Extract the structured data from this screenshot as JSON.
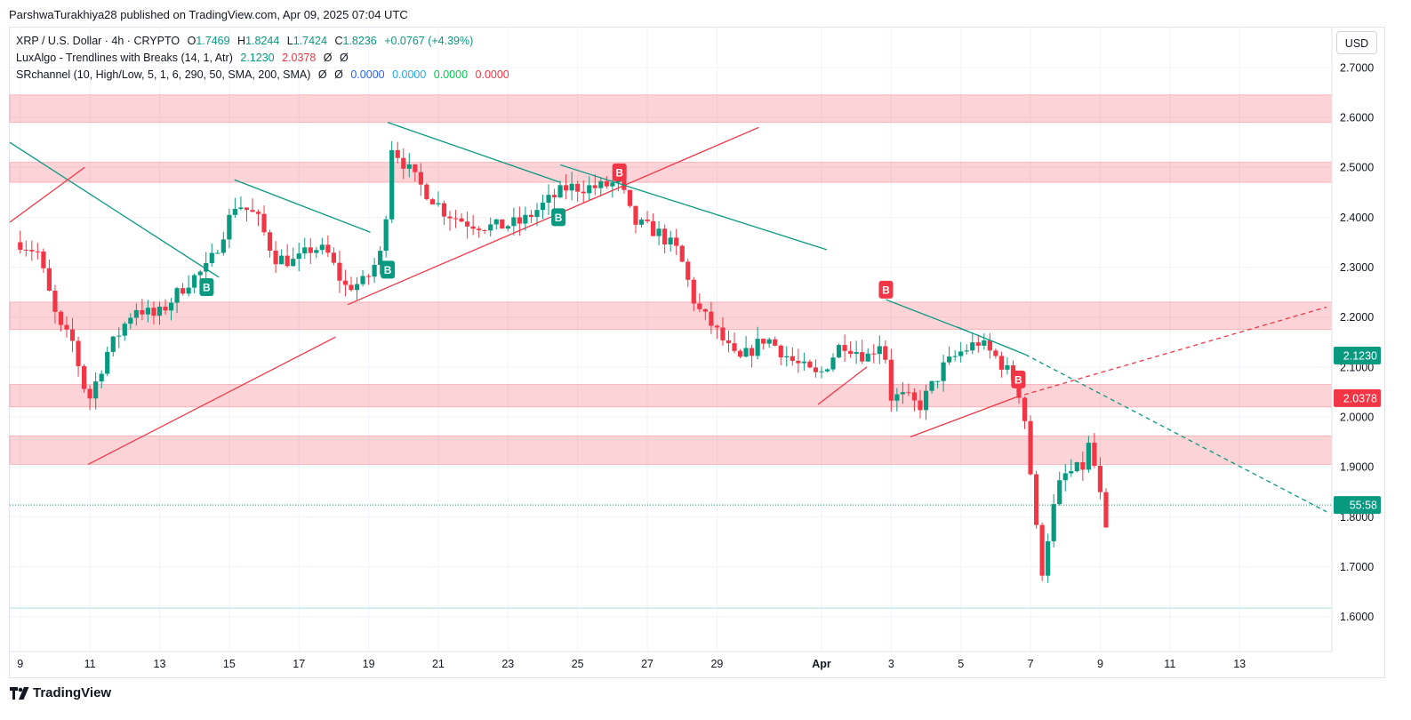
{
  "publisher": "ParshwaTurakhiya28 published on TradingView.com, Apr 09, 2025 07:04 UTC",
  "legend": {
    "symbol": "XRP / U.S. Dollar · 4h · CRYPTO",
    "open_label": "O",
    "open": "1.7469",
    "high_label": "H",
    "high": "1.8244",
    "low_label": "L",
    "low": "1.7424",
    "close_label": "C",
    "close": "1.8236",
    "change": "+0.0767 (+4.39%)",
    "ind1_name": "LuxAlgo - Trendlines with Breaks (14, 1, Atr)",
    "ind1_v1": "2.1230",
    "ind1_v2": "2.0378",
    "ind1_na1": "Ø",
    "ind1_na2": "Ø",
    "ind2_name": "SRchannel (10, High/Low, 5, 1, 6, 290, 50, SMA, 200, SMA)",
    "ind2_na1": "Ø",
    "ind2_na2": "Ø",
    "ind2_v1": "0.0000",
    "ind2_v2": "0.0000",
    "ind2_v3": "0.0000",
    "ind2_v4": "0.0000"
  },
  "currency_button": "USD",
  "branding": "TradingView",
  "colors": {
    "up": "#089981",
    "down": "#f23645",
    "zone": "#f23645",
    "support_trend": "#f23645",
    "resistance_trend": "#089981",
    "grid": "#f0f3fa"
  },
  "chart_data": {
    "type": "candlestick",
    "title": "XRP / U.S. Dollar · 4h · CRYPTO",
    "x_axis": "date",
    "y_axis": "price (USD)",
    "ylim": [
      1.53,
      2.78
    ],
    "y_ticks": [
      "2.7000",
      "2.6000",
      "2.5000",
      "2.4000",
      "2.3000",
      "2.2000",
      "2.1000",
      "2.0000",
      "1.9000",
      "1.8000",
      "1.7000",
      "1.6000"
    ],
    "x_ticks": [
      {
        "label": "9",
        "day": 9
      },
      {
        "label": "11",
        "day": 11
      },
      {
        "label": "13",
        "day": 13
      },
      {
        "label": "15",
        "day": 15
      },
      {
        "label": "17",
        "day": 17
      },
      {
        "label": "19",
        "day": 19
      },
      {
        "label": "21",
        "day": 21
      },
      {
        "label": "23",
        "day": 23
      },
      {
        "label": "25",
        "day": 25
      },
      {
        "label": "27",
        "day": 27
      },
      {
        "label": "29",
        "day": 29
      },
      {
        "label": "Apr",
        "day": 32
      },
      {
        "label": "3",
        "day": 34
      },
      {
        "label": "5",
        "day": 36
      },
      {
        "label": "7",
        "day": 38
      },
      {
        "label": "9",
        "day": 40
      },
      {
        "label": "11",
        "day": 42
      },
      {
        "label": "13",
        "day": 44
      }
    ],
    "x_domain_days": [
      8.7,
      46.65
    ],
    "price_labels": [
      {
        "label": "2.1230",
        "price": 2.123,
        "color": "#089981"
      },
      {
        "label": "2.0378",
        "price": 2.0378,
        "color": "#f23645"
      },
      {
        "label": "55:58",
        "price": 1.8236,
        "color": "#089981"
      }
    ],
    "sr_zones": [
      {
        "top": 2.645,
        "bottom": 2.59
      },
      {
        "top": 2.51,
        "bottom": 2.47
      },
      {
        "top": 2.23,
        "bottom": 2.175
      },
      {
        "top": 2.065,
        "bottom": 2.02
      },
      {
        "top": 1.962,
        "bottom": 1.905
      }
    ],
    "horizontal_lines": [
      {
        "price": 1.8236,
        "style": "dotted",
        "color": "#089981"
      },
      {
        "price": 1.617,
        "style": "solid",
        "color": "#a6e3dc"
      }
    ],
    "trendlines": [
      {
        "color": "#089981",
        "dash": false,
        "from": [
          8.7,
          2.55
        ],
        "to": [
          14.7,
          2.28
        ]
      },
      {
        "color": "#f23645",
        "dash": false,
        "from": [
          8.7,
          2.39
        ],
        "to": [
          10.85,
          2.5
        ]
      },
      {
        "color": "#089981",
        "dash": false,
        "from": [
          15.15,
          2.475
        ],
        "to": [
          19.05,
          2.37
        ]
      },
      {
        "color": "#f23645",
        "dash": false,
        "from": [
          10.95,
          1.905
        ],
        "to": [
          18.05,
          2.16
        ]
      },
      {
        "color": "#089981",
        "dash": false,
        "from": [
          19.55,
          2.59
        ],
        "to": [
          24.5,
          2.47
        ]
      },
      {
        "color": "#f23645",
        "dash": false,
        "from": [
          18.4,
          2.225
        ],
        "to": [
          30.2,
          2.58
        ]
      },
      {
        "color": "#089981",
        "dash": false,
        "from": [
          24.5,
          2.505
        ],
        "to": [
          32.15,
          2.335
        ]
      },
      {
        "color": "#f23645",
        "dash": false,
        "from": [
          31.9,
          2.025
        ],
        "to": [
          33.3,
          2.1
        ]
      },
      {
        "color": "#089981",
        "dash": false,
        "from": [
          33.85,
          2.235
        ],
        "to": [
          36.25,
          2.17
        ]
      },
      {
        "color": "#089981",
        "dash": false,
        "from": [
          35.9,
          2.18
        ],
        "to": [
          37.85,
          2.125
        ]
      },
      {
        "color": "#089981",
        "dash": true,
        "from": [
          37.85,
          2.125
        ],
        "to": [
          46.5,
          1.81
        ]
      },
      {
        "color": "#f23645",
        "dash": false,
        "from": [
          34.55,
          1.96
        ],
        "to": [
          37.6,
          2.04
        ]
      },
      {
        "color": "#f23645",
        "dash": true,
        "from": [
          37.6,
          2.04
        ],
        "to": [
          46.5,
          2.22
        ]
      }
    ],
    "signals": [
      {
        "label": "B",
        "type": "bull",
        "day": 14.35,
        "price": 2.26
      },
      {
        "label": "B",
        "type": "bull",
        "day": 19.55,
        "price": 2.295
      },
      {
        "label": "B",
        "type": "bull",
        "day": 24.45,
        "price": 2.4
      },
      {
        "label": "B",
        "type": "bear",
        "day": 26.2,
        "price": 2.49
      },
      {
        "label": "B",
        "type": "bear",
        "day": 33.85,
        "price": 2.255
      },
      {
        "label": "B",
        "type": "bear",
        "day": 37.65,
        "price": 2.075
      }
    ],
    "key_prices": [
      {
        "day": 9.0,
        "price": 2.35
      },
      {
        "day": 9.5,
        "price": 2.33
      },
      {
        "day": 10.1,
        "price": 2.18
      },
      {
        "day": 10.5,
        "price": 2.15
      },
      {
        "day": 10.95,
        "price": 2.03
      },
      {
        "day": 11.5,
        "price": 2.13
      },
      {
        "day": 12.3,
        "price": 2.22
      },
      {
        "day": 12.9,
        "price": 2.2
      },
      {
        "day": 13.8,
        "price": 2.27
      },
      {
        "day": 14.4,
        "price": 2.3
      },
      {
        "day": 15.2,
        "price": 2.43
      },
      {
        "day": 15.8,
        "price": 2.4
      },
      {
        "day": 16.3,
        "price": 2.32
      },
      {
        "day": 16.9,
        "price": 2.31
      },
      {
        "day": 17.4,
        "price": 2.34
      },
      {
        "day": 17.8,
        "price": 2.33
      },
      {
        "day": 18.3,
        "price": 2.26
      },
      {
        "day": 18.9,
        "price": 2.27
      },
      {
        "day": 19.45,
        "price": 2.34
      },
      {
        "day": 19.6,
        "price": 2.55
      },
      {
        "day": 20.0,
        "price": 2.51
      },
      {
        "day": 20.4,
        "price": 2.47
      },
      {
        "day": 21.2,
        "price": 2.41
      },
      {
        "day": 21.8,
        "price": 2.39
      },
      {
        "day": 22.6,
        "price": 2.38
      },
      {
        "day": 23.4,
        "price": 2.39
      },
      {
        "day": 24.1,
        "price": 2.43
      },
      {
        "day": 24.7,
        "price": 2.46
      },
      {
        "day": 25.6,
        "price": 2.46
      },
      {
        "day": 26.2,
        "price": 2.47
      },
      {
        "day": 26.6,
        "price": 2.39
      },
      {
        "day": 27.3,
        "price": 2.37
      },
      {
        "day": 27.9,
        "price": 2.33
      },
      {
        "day": 28.4,
        "price": 2.22
      },
      {
        "day": 28.9,
        "price": 2.18
      },
      {
        "day": 29.6,
        "price": 2.11
      },
      {
        "day": 30.4,
        "price": 2.16
      },
      {
        "day": 31.2,
        "price": 2.11
      },
      {
        "day": 31.9,
        "price": 2.08
      },
      {
        "day": 32.6,
        "price": 2.15
      },
      {
        "day": 33.3,
        "price": 2.12
      },
      {
        "day": 33.8,
        "price": 2.16
      },
      {
        "day": 33.9,
        "price": 2.04
      },
      {
        "day": 34.4,
        "price": 2.04
      },
      {
        "day": 34.8,
        "price": 2.02
      },
      {
        "day": 35.5,
        "price": 2.1
      },
      {
        "day": 36.0,
        "price": 2.13
      },
      {
        "day": 36.5,
        "price": 2.15
      },
      {
        "day": 37.0,
        "price": 2.12
      },
      {
        "day": 37.6,
        "price": 2.07
      },
      {
        "day": 37.85,
        "price": 1.99
      },
      {
        "day": 38.1,
        "price": 1.82
      },
      {
        "day": 38.3,
        "price": 1.68
      },
      {
        "day": 38.6,
        "price": 1.8
      },
      {
        "day": 38.9,
        "price": 1.88
      },
      {
        "day": 39.5,
        "price": 1.9
      },
      {
        "day": 39.7,
        "price": 1.95
      },
      {
        "day": 40.0,
        "price": 1.84
      },
      {
        "day": 40.2,
        "price": 1.75
      },
      {
        "day": 40.25,
        "price": 1.8236
      }
    ]
  }
}
